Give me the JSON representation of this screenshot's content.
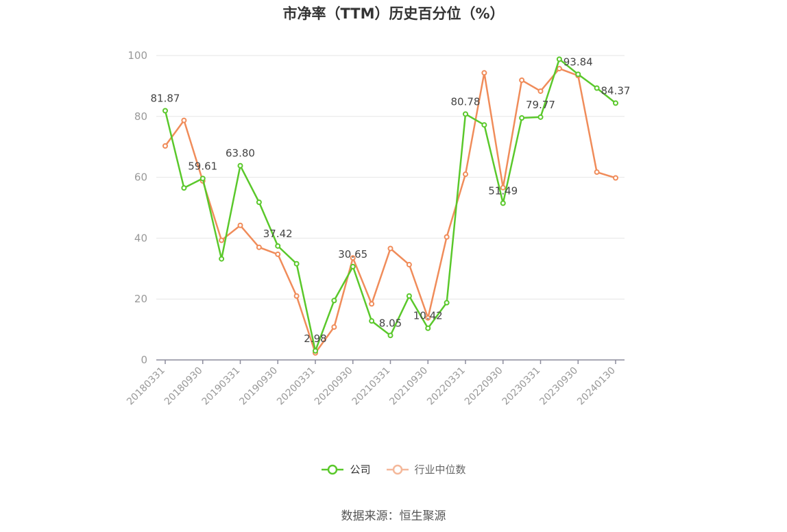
{
  "chart_data": {
    "type": "line",
    "title": "市净率（TTM）历史百分位（%）",
    "xlabel": "",
    "ylabel": "",
    "ylim": [
      0,
      100
    ],
    "yticks": [
      0,
      20,
      40,
      60,
      80,
      100
    ],
    "grid": true,
    "legend_position": "bottom",
    "x": [
      "20180331",
      "20180630",
      "20180930",
      "20181231",
      "20190331",
      "20190630",
      "20190930",
      "20191231",
      "20200331",
      "20200630",
      "20200930",
      "20201231",
      "20210331",
      "20210630",
      "20210930",
      "20211231",
      "20220331",
      "20220630",
      "20220930",
      "20221231",
      "20230331",
      "20230630",
      "20230930",
      "20231231",
      "20240130"
    ],
    "x_tick_labels": [
      "20180331",
      "20180930",
      "20190331",
      "20190930",
      "20200331",
      "20200930",
      "20210331",
      "20210930",
      "20220331",
      "20220930",
      "20230331",
      "20230930",
      "20240130"
    ],
    "series": [
      {
        "name": "公司",
        "color": "#5ac82b",
        "values": [
          81.87,
          56.5,
          59.61,
          33.2,
          63.8,
          51.8,
          37.42,
          31.6,
          2.98,
          19.5,
          30.65,
          12.8,
          8.05,
          21.0,
          10.42,
          18.8,
          80.78,
          77.2,
          51.49,
          79.5,
          79.77,
          98.8,
          93.84,
          89.3,
          84.37
        ],
        "labels": {
          "0": "81.87",
          "2": "59.61",
          "4": "63.80",
          "6": "37.42",
          "8": "2.98",
          "10": "30.65",
          "12": "8.05",
          "14": "10.42",
          "16": "80.78",
          "18": "51.49",
          "20": "79.77",
          "22": "93.84",
          "24": "84.37"
        }
      },
      {
        "name": "行业中位数",
        "color": "#f08c5a",
        "values": [
          70.3,
          78.7,
          58.8,
          39.3,
          44.2,
          37.0,
          34.7,
          21.0,
          2.3,
          10.8,
          33.5,
          18.4,
          36.6,
          31.3,
          13.8,
          40.4,
          61.0,
          94.3,
          56.6,
          91.9,
          88.3,
          95.7,
          93.4,
          61.7,
          59.8
        ]
      }
    ]
  },
  "legend": {
    "company_label": "公司",
    "industry_label": "行业中位数"
  },
  "source": "数据来源：恒生聚源"
}
